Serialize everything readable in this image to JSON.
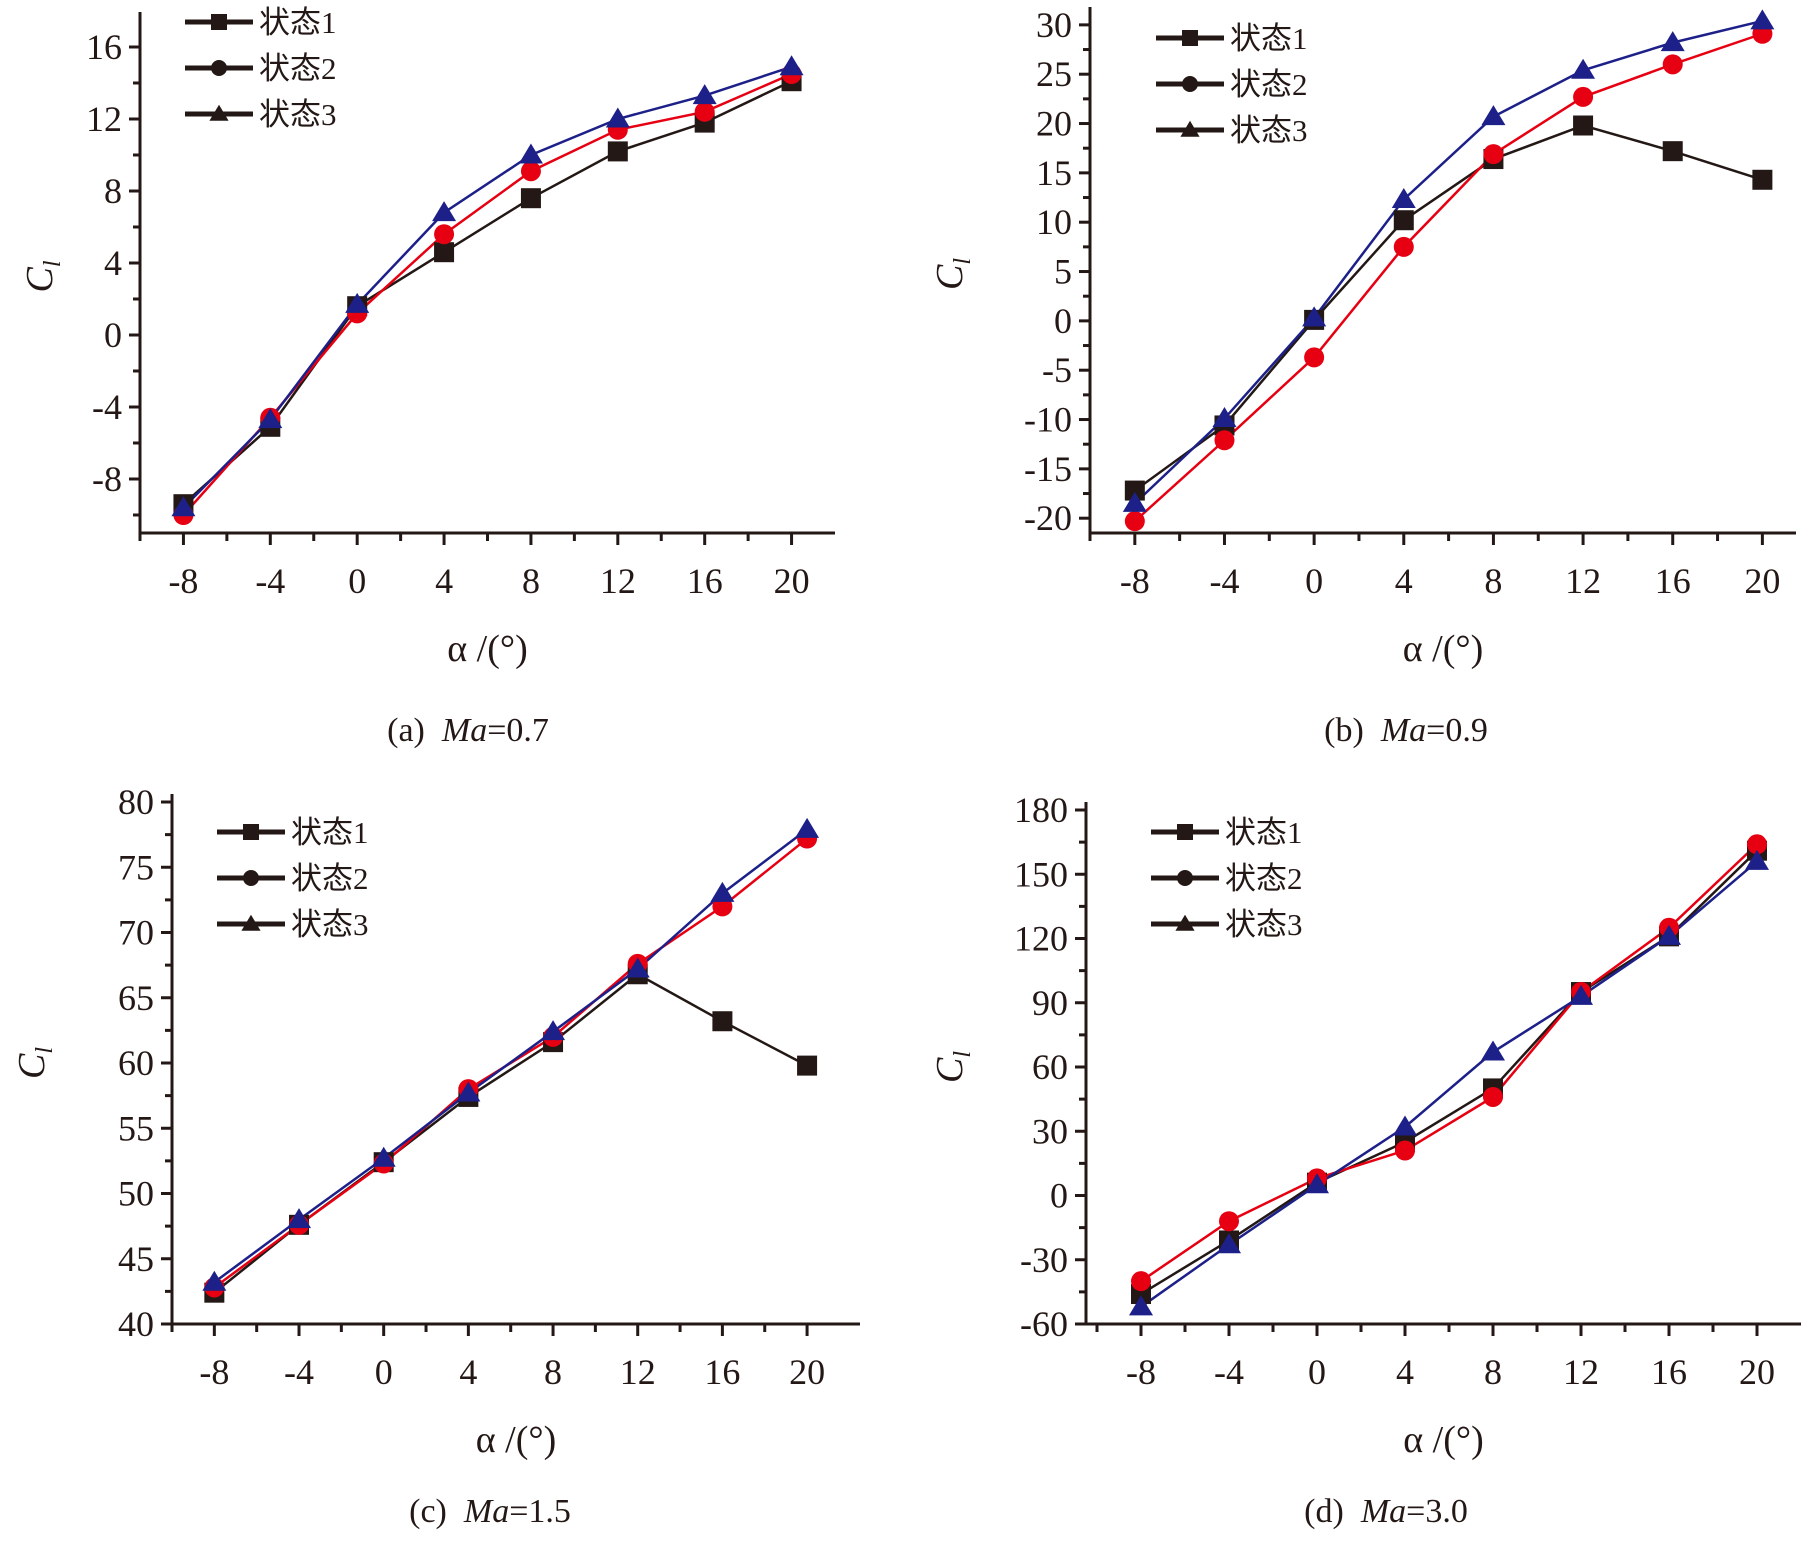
{
  "figure": {
    "legend_labels": [
      "状态1",
      "状态2",
      "状态3"
    ]
  },
  "chart_data": [
    {
      "type": "line",
      "panel": "a",
      "caption_prefix": "(a)",
      "caption_var": "Ma",
      "caption_value": "=0.7",
      "xlabel": "α /(°)",
      "ylabel": "C_l",
      "ylabel_main": "C",
      "ylabel_sub": "l",
      "x": [
        -8,
        -4,
        0,
        4,
        8,
        12,
        16,
        20
      ],
      "xticks": [
        -8,
        -4,
        0,
        4,
        8,
        12,
        16,
        20
      ],
      "xlim": [
        -10,
        22
      ],
      "yticks": [
        -8,
        -4,
        0,
        4,
        8,
        12,
        16
      ],
      "ylim": [
        -11,
        17.5
      ],
      "ytick_minor_step": 2,
      "grid": false,
      "legend_position": "top-left",
      "series": [
        {
          "name": "状态1",
          "marker": "square",
          "color": "#231815",
          "values": [
            -9.4,
            -5.1,
            1.6,
            4.6,
            7.6,
            10.2,
            11.8,
            14.1
          ]
        },
        {
          "name": "状态2",
          "marker": "circle",
          "color": "#e60012",
          "values": [
            -10.0,
            -4.6,
            1.2,
            5.6,
            9.1,
            11.4,
            12.4,
            14.5
          ]
        },
        {
          "name": "状态3",
          "marker": "triangle",
          "color": "#1d2088",
          "values": [
            -9.6,
            -4.7,
            1.7,
            6.8,
            10.0,
            12.0,
            13.3,
            14.9
          ]
        }
      ]
    },
    {
      "type": "line",
      "panel": "b",
      "caption_prefix": "(b)",
      "caption_var": "Ma",
      "caption_value": "=0.9",
      "xlabel": "α /(°)",
      "ylabel": "C_l",
      "ylabel_main": "C",
      "ylabel_sub": "l",
      "x": [
        -8,
        -4,
        0,
        4,
        8,
        12,
        16,
        20
      ],
      "xticks": [
        -8,
        -4,
        0,
        4,
        8,
        12,
        16,
        20
      ],
      "xlim": [
        -10,
        21.5
      ],
      "yticks": [
        -20,
        -15,
        -10,
        -5,
        0,
        5,
        10,
        15,
        20,
        25,
        30
      ],
      "ylim": [
        -21.5,
        31
      ],
      "ytick_minor_step": 2.5,
      "grid": false,
      "legend_position": "top-left",
      "series": [
        {
          "name": "状态1",
          "marker": "square",
          "color": "#231815",
          "values": [
            -17.2,
            -10.6,
            0.1,
            10.2,
            16.4,
            19.8,
            17.2,
            14.3
          ]
        },
        {
          "name": "状态2",
          "marker": "circle",
          "color": "#e60012",
          "values": [
            -20.3,
            -12.1,
            -3.7,
            7.5,
            16.9,
            22.7,
            26.0,
            29.1
          ]
        },
        {
          "name": "状态3",
          "marker": "triangle",
          "color": "#1d2088",
          "values": [
            -18.5,
            -9.9,
            0.3,
            12.3,
            20.7,
            25.4,
            28.2,
            30.4
          ]
        }
      ]
    },
    {
      "type": "line",
      "panel": "c",
      "caption_prefix": "(c)",
      "caption_var": "Ma",
      "caption_value": "=1.5",
      "xlabel": "α /(°)",
      "ylabel": "C_l",
      "ylabel_main": "C",
      "ylabel_sub": "l",
      "x": [
        -8,
        -4,
        0,
        4,
        8,
        12,
        16,
        20
      ],
      "xticks": [
        -8,
        -4,
        0,
        4,
        8,
        12,
        16,
        20
      ],
      "xlim": [
        -10,
        22.5
      ],
      "yticks": [
        40,
        45,
        50,
        55,
        60,
        65,
        70,
        75,
        80
      ],
      "ylim": [
        40,
        80
      ],
      "ytick_minor_step": 2.5,
      "grid": false,
      "legend_position": "top-left",
      "series": [
        {
          "name": "状态1",
          "marker": "square",
          "color": "#231815",
          "values": [
            42.4,
            47.6,
            52.4,
            57.4,
            61.6,
            66.8,
            63.2,
            59.8
          ]
        },
        {
          "name": "状态2",
          "marker": "circle",
          "color": "#e60012",
          "values": [
            42.8,
            47.6,
            52.3,
            58.0,
            62.0,
            67.6,
            72.0,
            77.2
          ]
        },
        {
          "name": "状态3",
          "marker": "triangle",
          "color": "#1d2088",
          "values": [
            43.2,
            48.0,
            52.7,
            57.7,
            62.4,
            67.2,
            73.0,
            77.9
          ]
        }
      ]
    },
    {
      "type": "line",
      "panel": "d",
      "caption_prefix": "(d)",
      "caption_var": "Ma",
      "caption_value": "=3.0",
      "xlabel": "α /(°)",
      "ylabel": "C_l",
      "ylabel_main": "C",
      "ylabel_sub": "l",
      "x": [
        -8,
        -4,
        0,
        4,
        8,
        12,
        16,
        20
      ],
      "xticks": [
        -8,
        -4,
        0,
        4,
        8,
        12,
        16,
        20
      ],
      "xlim": [
        -10.5,
        22
      ],
      "yticks": [
        -60,
        -30,
        0,
        30,
        60,
        90,
        120,
        150,
        180
      ],
      "ylim": [
        -60,
        180
      ],
      "ytick_minor_step": 15,
      "grid": false,
      "legend_position": "top-left",
      "series": [
        {
          "name": "状态1",
          "marker": "square",
          "color": "#231815",
          "values": [
            -46,
            -21,
            6,
            25,
            50,
            95,
            121,
            161
          ]
        },
        {
          "name": "状态2",
          "marker": "circle",
          "color": "#e60012",
          "values": [
            -40,
            -12,
            8,
            21,
            46,
            95,
            125,
            164
          ]
        },
        {
          "name": "状态3",
          "marker": "triangle",
          "color": "#1d2088",
          "values": [
            -52,
            -23,
            5,
            32,
            67,
            93,
            121,
            156
          ]
        }
      ]
    }
  ]
}
